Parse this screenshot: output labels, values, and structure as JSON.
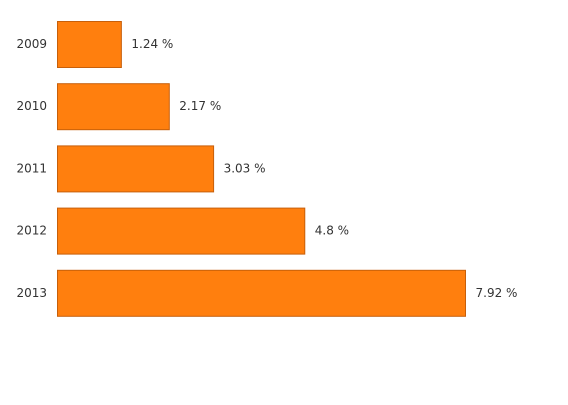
{
  "chart_data": {
    "type": "bar",
    "orientation": "horizontal",
    "categories": [
      "2009",
      "2010",
      "2011",
      "2012",
      "2013"
    ],
    "values": [
      1.24,
      2.17,
      3.03,
      4.8,
      7.92
    ],
    "value_labels": [
      "1.24 %",
      "2.17 %",
      "3.03 %",
      "4.8 %",
      "7.92 %"
    ],
    "title": "",
    "xlabel": "",
    "ylabel": "",
    "grid": false,
    "legend": "none",
    "colors": {
      "bar_fill": "#ff7f0e",
      "bar_stroke": "#c75f0a",
      "text": "#333333",
      "background": "#ffffff"
    }
  }
}
